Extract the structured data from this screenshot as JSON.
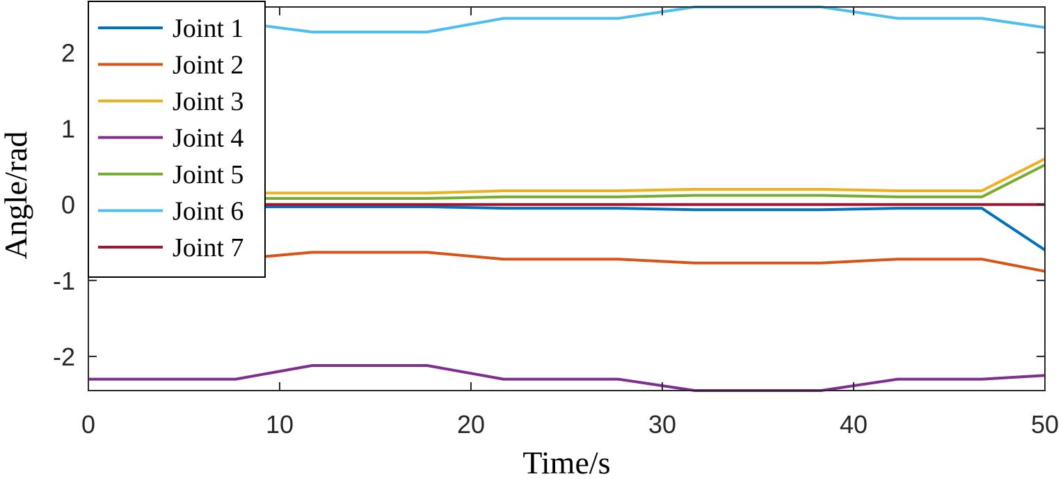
{
  "chart_data": {
    "type": "line",
    "xlabel": "Time/s",
    "ylabel": "Angle/rad",
    "xlim": [
      0,
      50
    ],
    "ylim": [
      -2.45,
      2.6
    ],
    "xticks": [
      0,
      10,
      20,
      30,
      40,
      50
    ],
    "xtick_labels": [
      "0",
      "10",
      "20",
      "30",
      "40",
      "50"
    ],
    "yticks": [
      -2,
      -1,
      0,
      1,
      2
    ],
    "ytick_labels": [
      "-2",
      "-1",
      "0",
      "1",
      "2"
    ],
    "grid": false,
    "legend_position": "top-left",
    "x": [
      0,
      7.7,
      11.7,
      17.7,
      21.7,
      27.7,
      31.7,
      38.3,
      42.3,
      46.7,
      50
    ],
    "series": [
      {
        "name": "Joint 1",
        "color": "#0072BD",
        "values": [
          -0.03,
          -0.03,
          -0.03,
          -0.03,
          -0.05,
          -0.05,
          -0.07,
          -0.07,
          -0.05,
          -0.05,
          -0.6
        ]
      },
      {
        "name": "Joint 2",
        "color": "#D95319",
        "values": [
          -0.72,
          -0.72,
          -0.63,
          -0.63,
          -0.72,
          -0.72,
          -0.77,
          -0.77,
          -0.72,
          -0.72,
          -0.88
        ]
      },
      {
        "name": "Joint 3",
        "color": "#EDB120",
        "values": [
          0.15,
          0.15,
          0.15,
          0.15,
          0.18,
          0.18,
          0.2,
          0.2,
          0.18,
          0.18,
          0.6
        ]
      },
      {
        "name": "Joint 4",
        "color": "#7E2F8E",
        "values": [
          -2.3,
          -2.3,
          -2.12,
          -2.12,
          -2.3,
          -2.3,
          -2.45,
          -2.45,
          -2.3,
          -2.3,
          -2.25
        ]
      },
      {
        "name": "Joint 5",
        "color": "#77AC30",
        "values": [
          0.08,
          0.08,
          0.08,
          0.08,
          0.1,
          0.1,
          0.12,
          0.12,
          0.1,
          0.1,
          0.52
        ]
      },
      {
        "name": "Joint 6",
        "color": "#4DBEEE",
        "values": [
          2.4,
          2.4,
          2.27,
          2.27,
          2.45,
          2.45,
          2.6,
          2.6,
          2.45,
          2.45,
          2.33
        ]
      },
      {
        "name": "Joint 7",
        "color": "#A2142F",
        "values": [
          0,
          0,
          0,
          0,
          0,
          0,
          0,
          0,
          0,
          0,
          0
        ]
      }
    ]
  }
}
